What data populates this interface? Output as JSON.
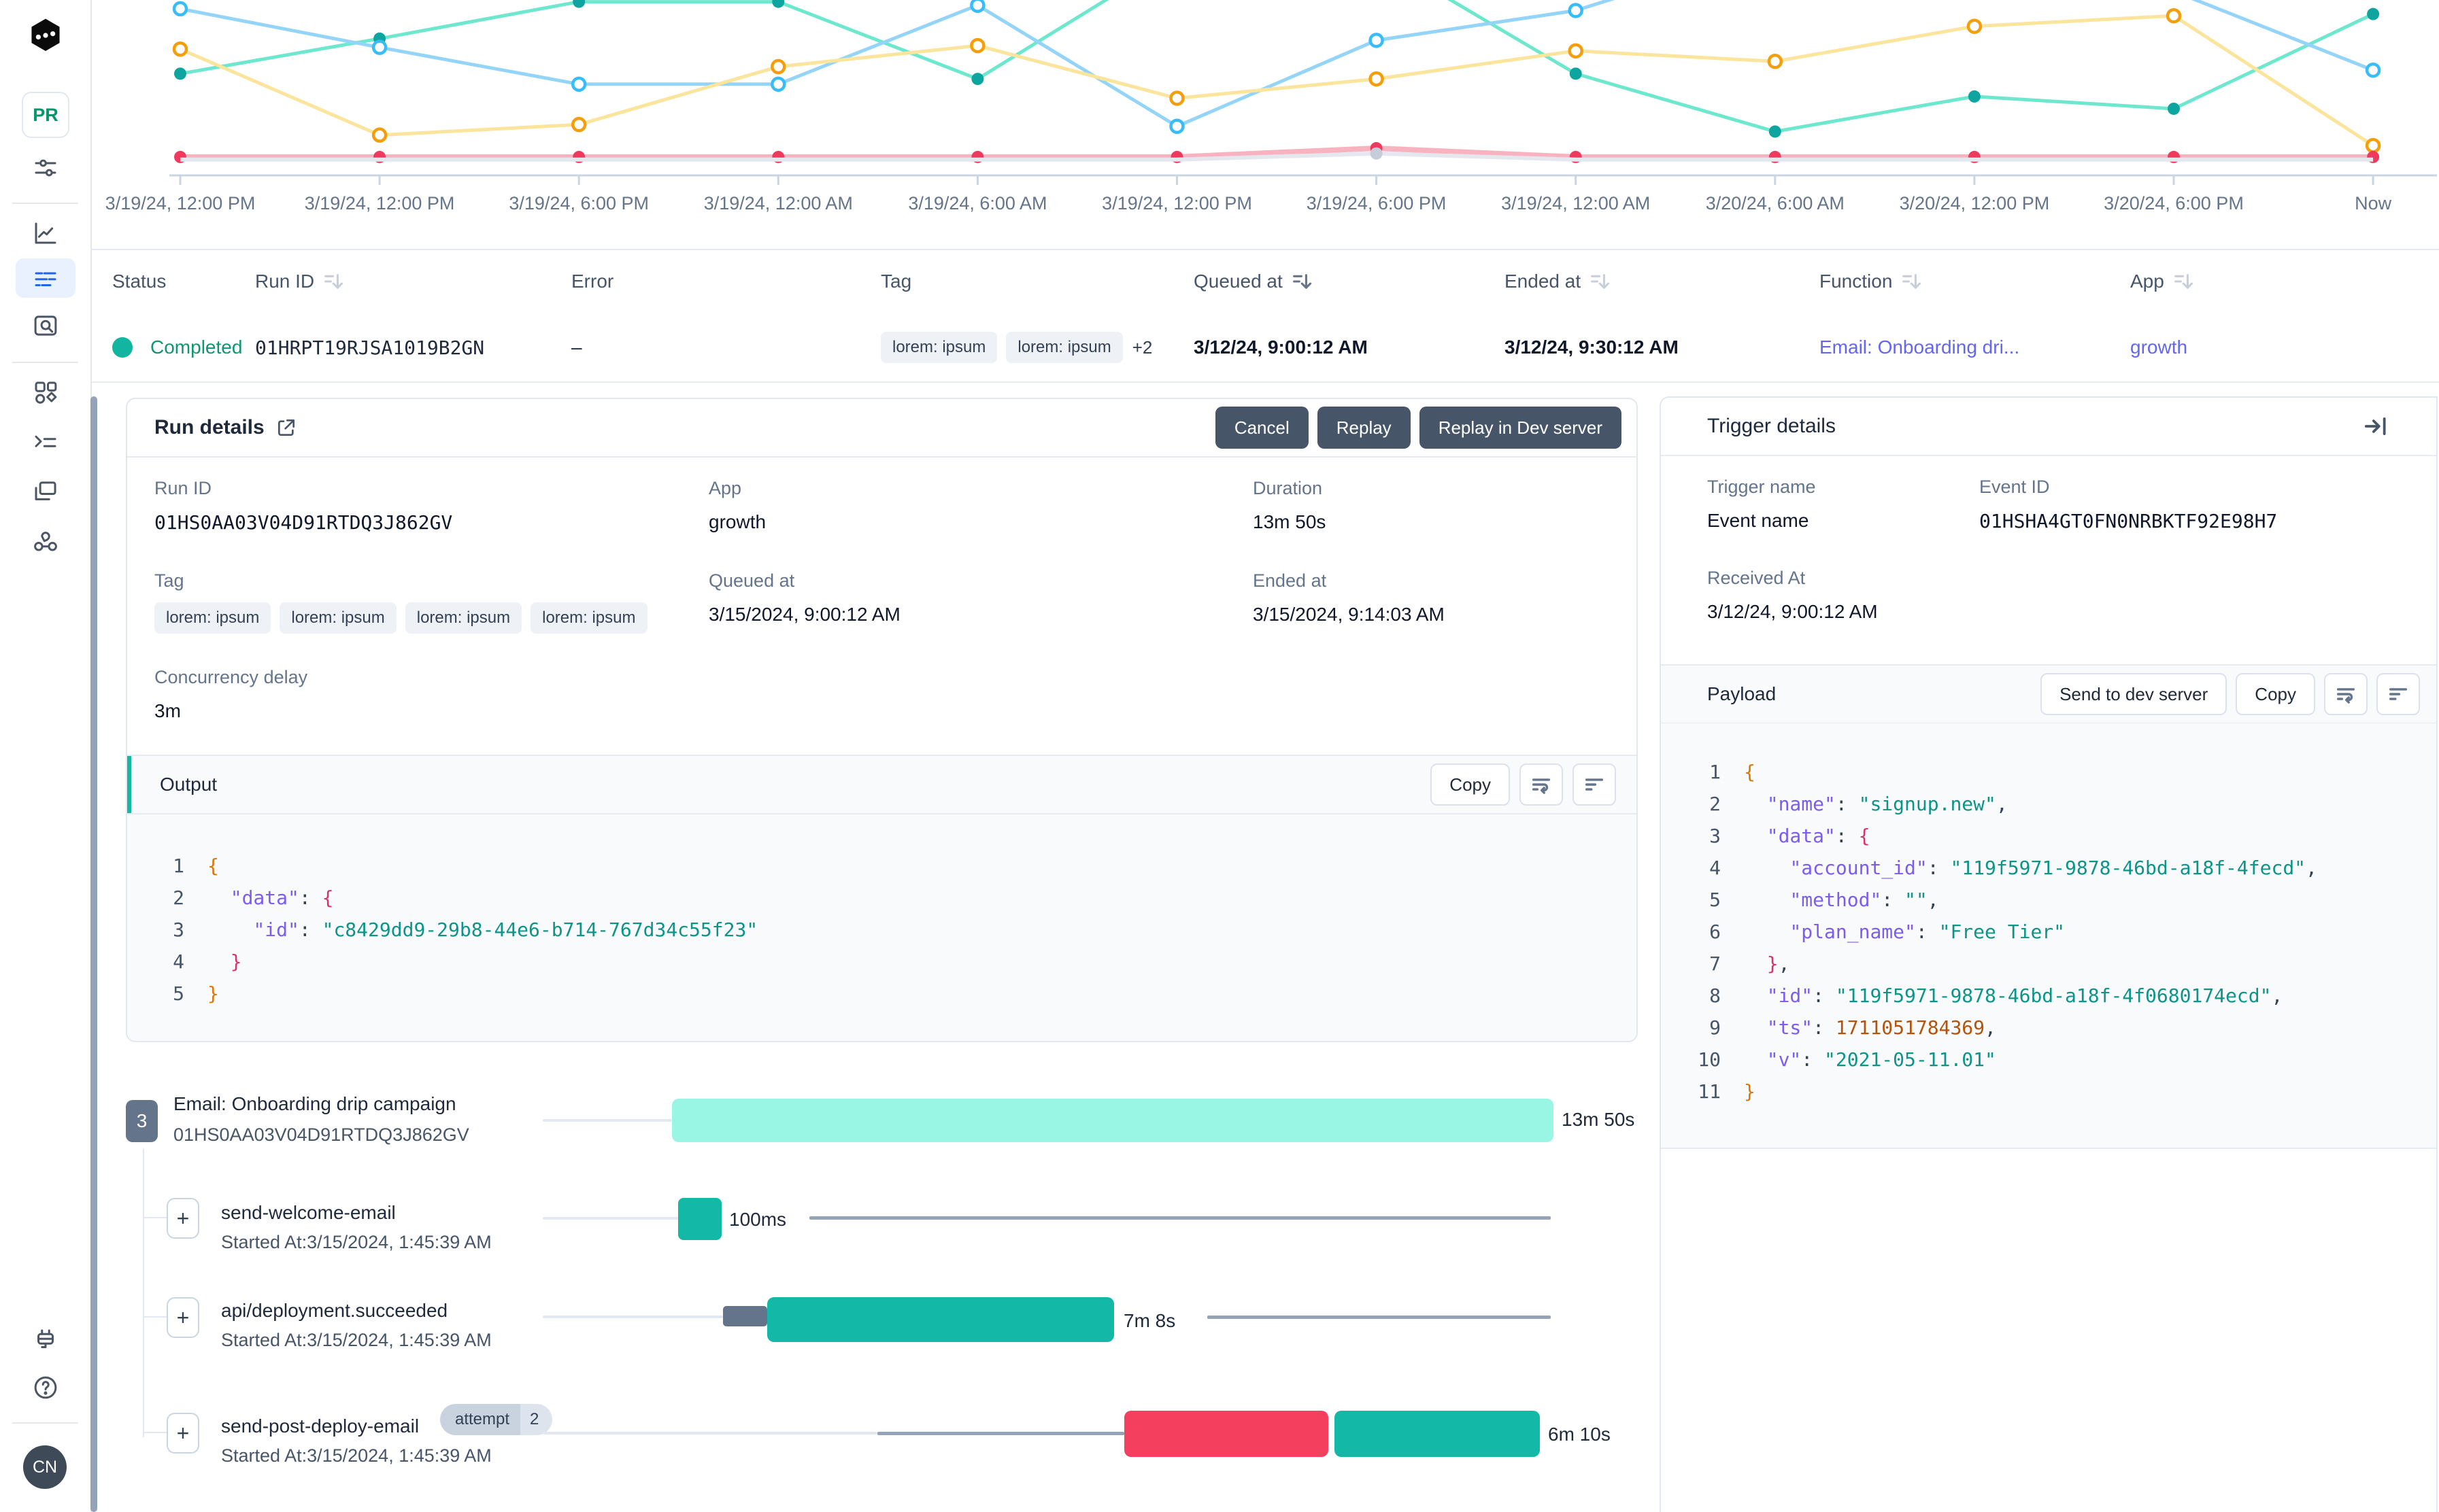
{
  "sidebar": {
    "logo": "inngest-logo",
    "env_badge": "PR",
    "avatar_initials": "CN"
  },
  "chart_data": {
    "type": "line",
    "title": "",
    "xlabel": "",
    "ylabel": "",
    "grid": false,
    "legend": "none",
    "note": "y values are relative vertical positions (0=top of plot, 1=baseline); no y-axis is shown in the UI",
    "categories": [
      "3/19/24, 12:00 PM",
      "3/19/24, 12:00 PM",
      "3/19/24, 6:00 PM",
      "3/19/24, 12:00 AM",
      "3/19/24, 6:00 AM",
      "3/19/24, 12:00 PM",
      "3/19/24, 6:00 PM",
      "3/19/24, 12:00 AM",
      "3/20/24, 6:00 AM",
      "3/20/24, 12:00 PM",
      "3/20/24, 6:00 PM",
      "Now"
    ],
    "series": [
      {
        "name": "teal-series",
        "line_color": "#6ee7cf",
        "dot_color": "#0ea5a0",
        "dot_style": "filled",
        "width": 5,
        "y_frac": [
          0.42,
          0.22,
          0.01,
          0.01,
          0.45,
          -0.25,
          -0.25,
          0.42,
          0.75,
          0.55,
          0.62,
          0.08
        ]
      },
      {
        "name": "sky-series",
        "line_color": "#93d4f8",
        "dot_color": "#38bdf8",
        "dot_style": "hollow",
        "width": 5,
        "y_frac": [
          0.05,
          0.27,
          0.48,
          0.48,
          0.03,
          0.72,
          0.23,
          0.06,
          -0.3,
          -0.35,
          -0.05,
          0.4
        ]
      },
      {
        "name": "amber-series",
        "line_color": "#fbe49b",
        "dot_color": "#f59e0b",
        "dot_style": "hollow",
        "width": 5,
        "y_frac": [
          0.28,
          0.77,
          0.71,
          0.38,
          0.26,
          0.56,
          0.45,
          0.29,
          0.35,
          0.15,
          0.09,
          0.83
        ]
      },
      {
        "name": "rose-series",
        "line_color": "#f9b3c0",
        "dot_color": "#ef3a5e",
        "dot_style": "filled",
        "width": 8,
        "y_frac": [
          0.895,
          0.895,
          0.895,
          0.895,
          0.895,
          0.895,
          0.845,
          0.895,
          0.895,
          0.895,
          0.895,
          0.895
        ]
      },
      {
        "name": "gray-series",
        "line_color": "#e4e8ee",
        "dot_color": "#c4cdd8",
        "dot_style": "filled",
        "width": 6,
        "dots": [
          6
        ],
        "y_frac": [
          0.91,
          0.91,
          0.91,
          0.91,
          0.91,
          0.91,
          0.875,
          0.91,
          0.91,
          0.91,
          0.91,
          0.91
        ]
      }
    ]
  },
  "table": {
    "columns": [
      {
        "label": "Status",
        "sortable": false
      },
      {
        "label": "Run ID",
        "sortable": true,
        "active": false
      },
      {
        "label": "Error",
        "sortable": false
      },
      {
        "label": "Tag",
        "sortable": false
      },
      {
        "label": "Queued at",
        "sortable": true,
        "active": true
      },
      {
        "label": "Ended at",
        "sortable": true,
        "active": false
      },
      {
        "label": "Function",
        "sortable": true,
        "active": false
      },
      {
        "label": "App",
        "sortable": true,
        "active": false
      }
    ],
    "row": {
      "status": "Completed",
      "run_id": "01HRPT19RJSA1019B2GN",
      "error": "–",
      "tags": [
        "lorem: ipsum",
        "lorem: ipsum"
      ],
      "tags_more": "+2",
      "queued_at": "3/12/24, 9:00:12 AM",
      "ended_at": "3/12/24, 9:30:12 AM",
      "function": "Email: Onboarding dri...",
      "app": "growth"
    }
  },
  "run_details": {
    "title": "Run details",
    "buttons": {
      "cancel": "Cancel",
      "replay": "Replay",
      "replay_dev": "Replay in Dev server"
    },
    "labels": {
      "run_id": "Run ID",
      "app": "App",
      "duration": "Duration",
      "tag": "Tag",
      "queued_at": "Queued at",
      "ended_at": "Ended at",
      "concurrency": "Concurrency delay"
    },
    "values": {
      "run_id": "01HS0AA03V04D91RTDQ3J862GV",
      "app": "growth",
      "duration": "13m 50s",
      "queued_at": "3/15/2024, 9:00:12 AM",
      "ended_at": "3/15/2024, 9:14:03 AM",
      "concurrency": "3m"
    },
    "tags": [
      "lorem: ipsum",
      "lorem: ipsum",
      "lorem: ipsum",
      "lorem: ipsum"
    ]
  },
  "output": {
    "title": "Output",
    "copy_label": "Copy",
    "lines": [
      [
        [
          "t-b1",
          "{"
        ]
      ],
      [
        [
          "t-p",
          "  "
        ],
        [
          "t-key",
          "\"data\""
        ],
        [
          "t-p",
          ": "
        ],
        [
          "t-b2",
          "{"
        ]
      ],
      [
        [
          "t-p",
          "    "
        ],
        [
          "t-key",
          "\"id\""
        ],
        [
          "t-p",
          ": "
        ],
        [
          "t-str",
          "\"c8429dd9-29b8-44e6-b714-767d34c55f23\""
        ]
      ],
      [
        [
          "t-p",
          "  "
        ],
        [
          "t-b2",
          "}"
        ]
      ],
      [
        [
          "t-b1",
          "}"
        ]
      ]
    ]
  },
  "timeline": {
    "expand_glyph": "+",
    "rows": [
      {
        "badge": "3",
        "title": "Email: Onboarding drip campaign",
        "subtitle": "01HS0AA03V04D91RTDQ3J862GV",
        "duration": "13m 50s"
      },
      {
        "title": "send-welcome-email",
        "subtitle": "Started At:3/15/2024, 1:45:39 AM",
        "duration": "100ms"
      },
      {
        "title": "api/deployment.succeeded",
        "subtitle": "Started At:3/15/2024, 1:45:39 AM",
        "duration": "7m 8s"
      },
      {
        "title": "send-post-deploy-email",
        "subtitle": "Started At:3/15/2024, 1:45:39 AM",
        "duration": "6m 10s",
        "attempt_label": "attempt",
        "attempt_count": "2"
      }
    ]
  },
  "trigger": {
    "title": "Trigger details",
    "labels": {
      "trigger_name": "Trigger name",
      "event_id": "Event ID",
      "received_at": "Received At"
    },
    "values": {
      "trigger_name": "Event name",
      "event_id": "01HSHA4GT0FN0NRBKTF92E98H7",
      "received_at": "3/12/24, 9:00:12 AM"
    }
  },
  "payload": {
    "title": "Payload",
    "buttons": {
      "send": "Send to dev server",
      "copy": "Copy"
    },
    "lines": [
      [
        [
          "t-b1",
          "{"
        ]
      ],
      [
        [
          "t-p",
          "  "
        ],
        [
          "t-key",
          "\"name\""
        ],
        [
          "t-p",
          ": "
        ],
        [
          "t-str",
          "\"signup.new\""
        ],
        [
          "t-p",
          ","
        ]
      ],
      [
        [
          "t-p",
          "  "
        ],
        [
          "t-key",
          "\"data\""
        ],
        [
          "t-p",
          ": "
        ],
        [
          "t-b2",
          "{"
        ]
      ],
      [
        [
          "t-p",
          "    "
        ],
        [
          "t-key",
          "\"account_id\""
        ],
        [
          "t-p",
          ": "
        ],
        [
          "t-str",
          "\"119f5971-9878-46bd-a18f-4fecd\""
        ],
        [
          "t-p",
          ","
        ]
      ],
      [
        [
          "t-p",
          "    "
        ],
        [
          "t-key",
          "\"method\""
        ],
        [
          "t-p",
          ": "
        ],
        [
          "t-str",
          "\"\""
        ],
        [
          "t-p",
          ","
        ]
      ],
      [
        [
          "t-p",
          "    "
        ],
        [
          "t-key",
          "\"plan_name\""
        ],
        [
          "t-p",
          ": "
        ],
        [
          "t-str",
          "\"Free Tier\""
        ]
      ],
      [
        [
          "t-p",
          "  "
        ],
        [
          "t-b2",
          "}"
        ],
        [
          "t-p",
          ","
        ]
      ],
      [
        [
          "t-p",
          "  "
        ],
        [
          "t-key",
          "\"id\""
        ],
        [
          "t-p",
          ": "
        ],
        [
          "t-str",
          "\"119f5971-9878-46bd-a18f-4f0680174ecd\""
        ],
        [
          "t-p",
          ","
        ]
      ],
      [
        [
          "t-p",
          "  "
        ],
        [
          "t-key",
          "\"ts\""
        ],
        [
          "t-p",
          ": "
        ],
        [
          "t-num",
          "1711051784369"
        ],
        [
          "t-p",
          ","
        ]
      ],
      [
        [
          "t-p",
          "  "
        ],
        [
          "t-key",
          "\"v\""
        ],
        [
          "t-p",
          ": "
        ],
        [
          "t-str",
          "\"2021-05-11.01\""
        ]
      ],
      [
        [
          "t-b1",
          "}"
        ]
      ]
    ]
  }
}
